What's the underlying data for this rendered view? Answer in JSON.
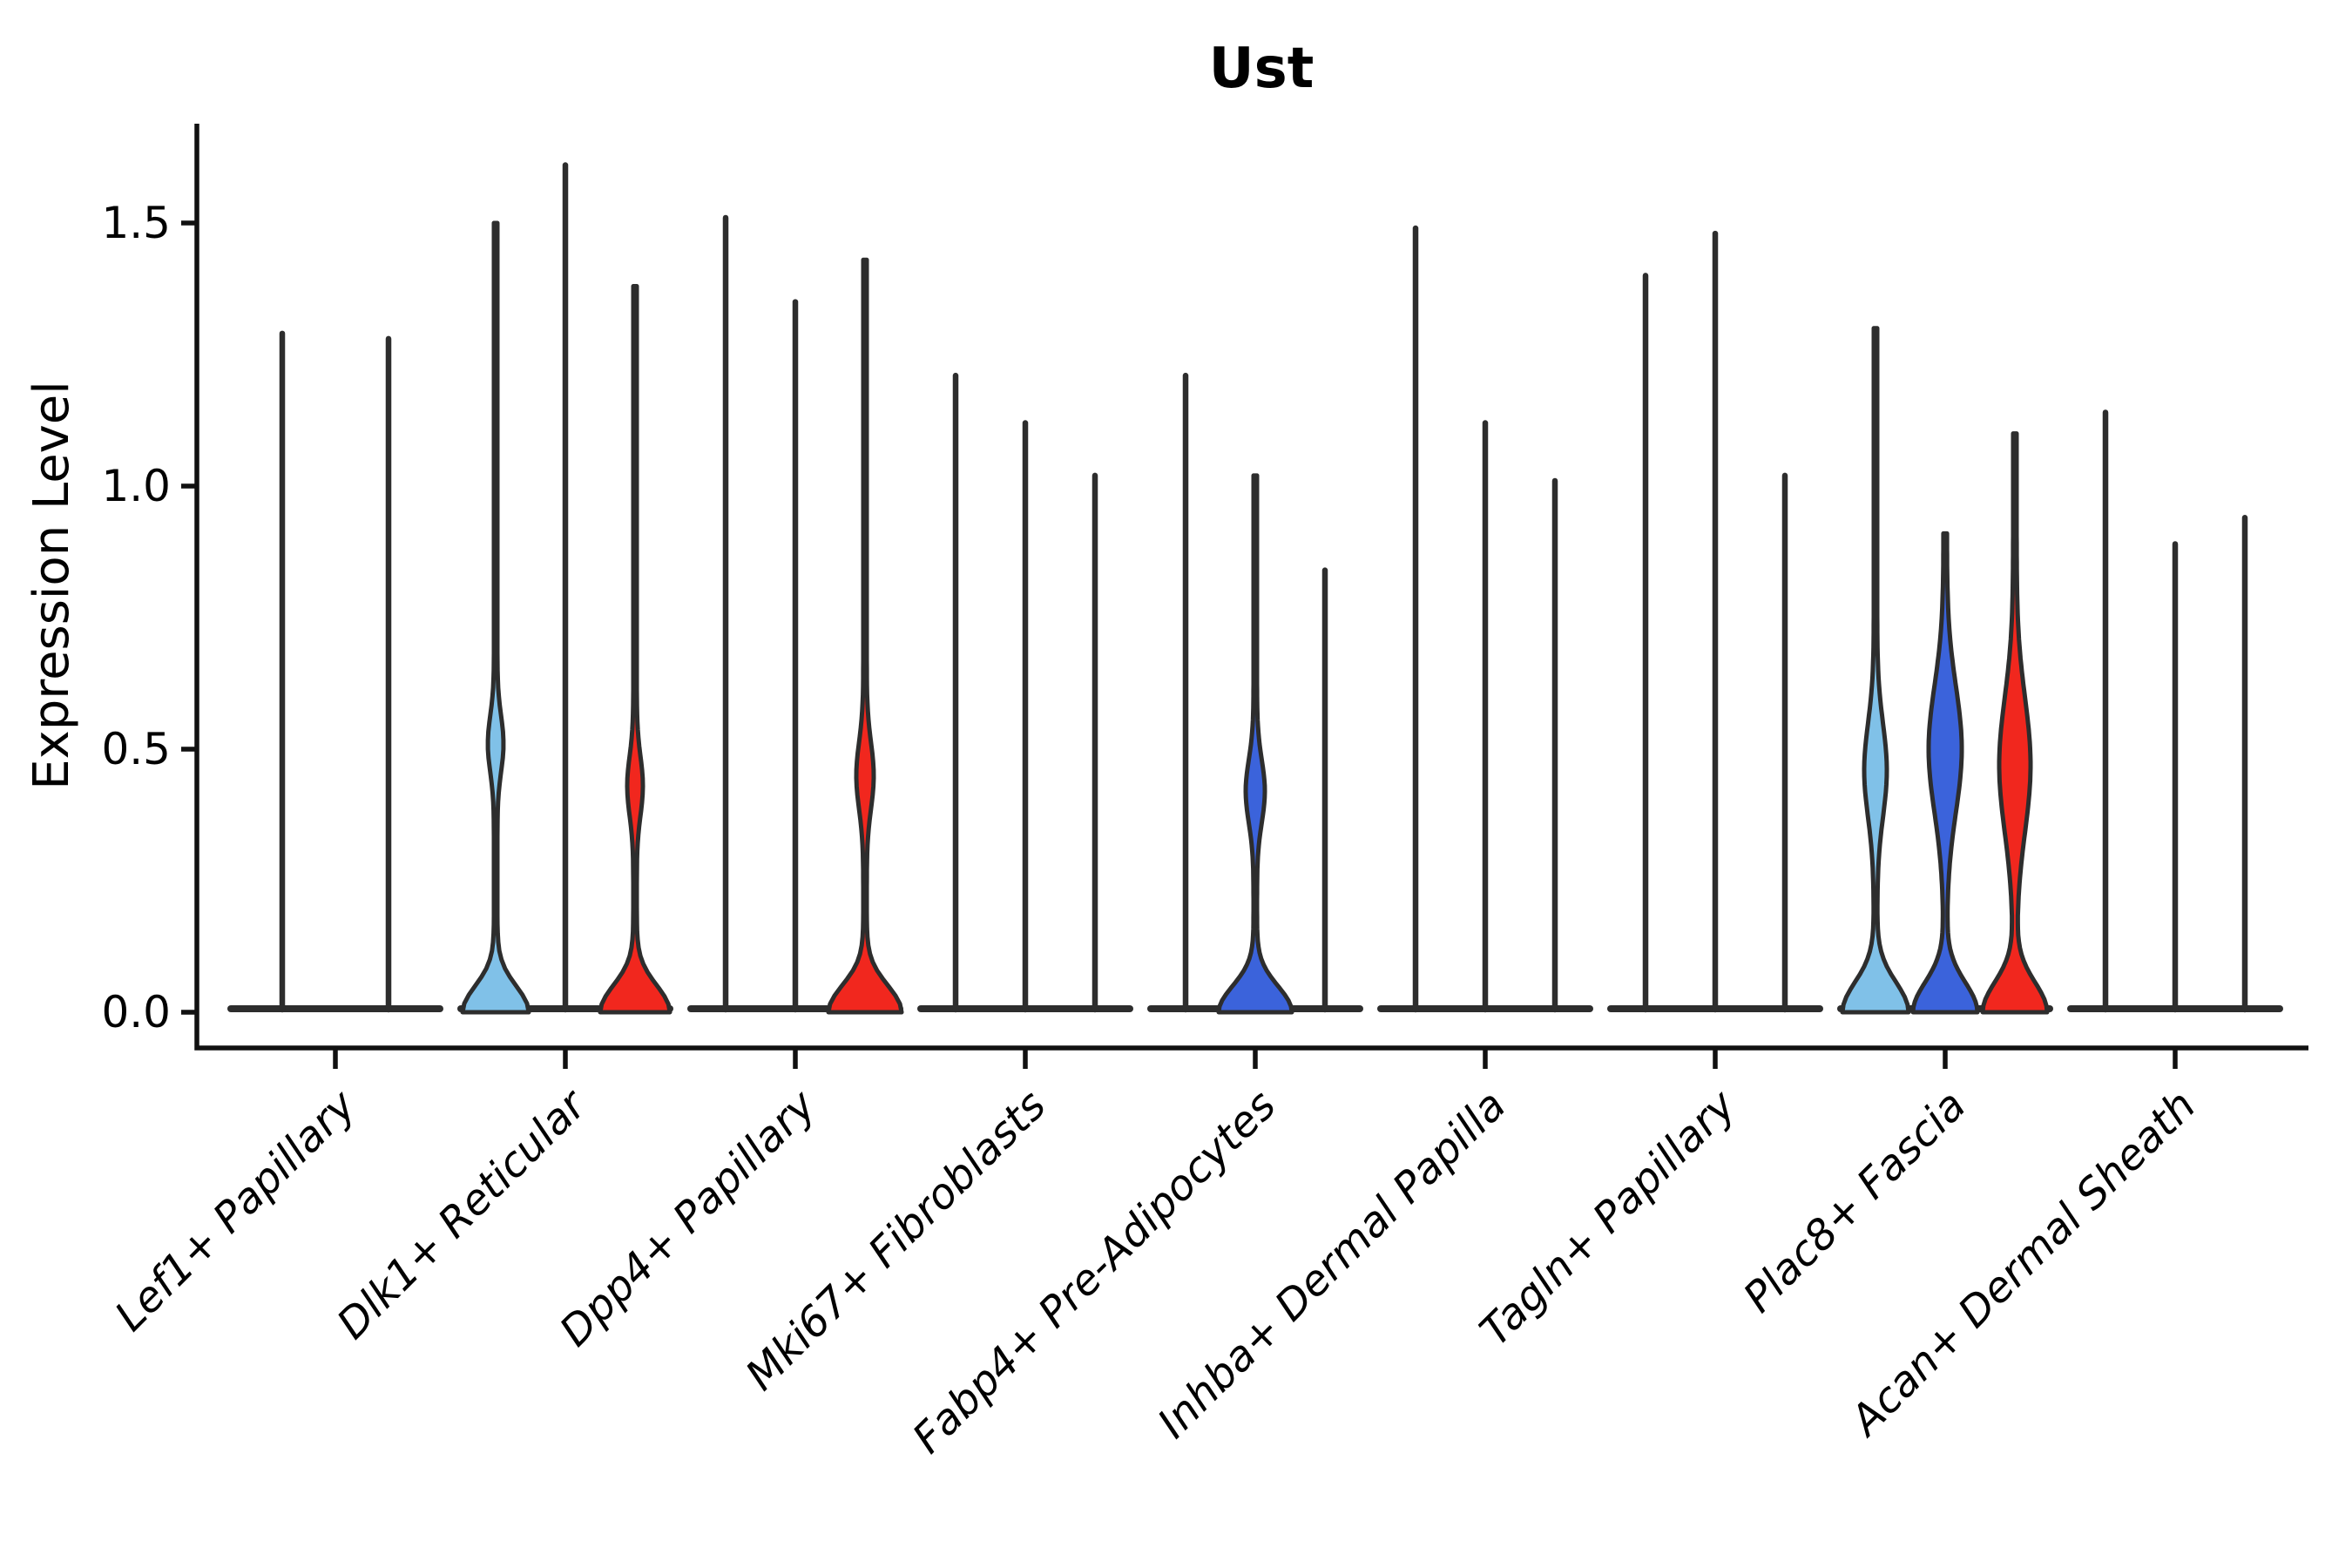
{
  "chart_data": {
    "type": "violin",
    "title": "Ust",
    "xlabel": "",
    "ylabel": "Expression Level",
    "yticks": [
      "0.0",
      "0.5",
      "1.0",
      "1.5"
    ],
    "ytick_values": [
      0.0,
      0.5,
      1.0,
      1.5
    ],
    "ylim": [
      0,
      1.69
    ],
    "grid": false,
    "legend": "none",
    "categories": [
      "Lef1+ Papillary",
      "Dlk1+ Reticular",
      "Dpp4+ Papillary",
      "Mki67+ Fibroblasts",
      "Fabp4+ Pre-Adipocytes",
      "Inhba+ Dermal Papilla",
      "Tagln+ Papillary",
      "Plac8+ Fascia",
      "Acan+ Dermal Sheath"
    ],
    "palette": {
      "light_blue": "#80C1E8",
      "dark_blue": "#3B63DB",
      "red": "#F1271E",
      "outline": "#2D2D2D",
      "axis": "#111111",
      "text": "#000000"
    },
    "groups": [
      {
        "category": "Lef1+ Papillary",
        "violins": [
          {
            "style": "spike",
            "max": 1.29
          },
          {
            "style": "spike",
            "max": 1.28
          }
        ]
      },
      {
        "category": "Dlk1+ Reticular",
        "violins": [
          {
            "style": "violin",
            "fill": "light_blue",
            "max": 1.5,
            "bulge": {
              "v": 0.51,
              "w": 7,
              "s": 0.075
            },
            "base": {
              "w": 36,
              "s": 0.07
            }
          },
          {
            "style": "spike",
            "max": 1.61
          },
          {
            "style": "violin",
            "fill": "red",
            "max": 1.38,
            "bulge": {
              "v": 0.43,
              "w": 7,
              "s": 0.08
            },
            "base": {
              "w": 38,
              "s": 0.072
            }
          }
        ]
      },
      {
        "category": "Dpp4+ Papillary",
        "violins": [
          {
            "style": "spike",
            "max": 1.51
          },
          {
            "style": "spike",
            "max": 1.35
          },
          {
            "style": "violin",
            "fill": "red",
            "max": 1.43,
            "bulge": {
              "v": 0.45,
              "w": 8,
              "s": 0.09
            },
            "base": {
              "w": 40,
              "s": 0.072
            }
          }
        ]
      },
      {
        "category": "Mki67+ Fibroblasts",
        "violins": [
          {
            "style": "spike",
            "max": 1.21
          },
          {
            "style": "spike",
            "max": 1.12
          },
          {
            "style": "spike",
            "max": 1.02
          }
        ]
      },
      {
        "category": "Fabp4+ Pre-Adipocytes",
        "violins": [
          {
            "style": "spike",
            "max": 1.21
          },
          {
            "style": "violin",
            "fill": "dark_blue",
            "max": 1.02,
            "bulge": {
              "v": 0.42,
              "w": 9,
              "s": 0.085
            },
            "base": {
              "w": 40,
              "s": 0.07
            }
          },
          {
            "style": "spike",
            "max": 0.84
          }
        ]
      },
      {
        "category": "Inhba+ Dermal Papilla",
        "violins": [
          {
            "style": "spike",
            "max": 1.49
          },
          {
            "style": "spike",
            "max": 1.12
          },
          {
            "style": "spike",
            "max": 1.01
          }
        ]
      },
      {
        "category": "Tagln+ Papillary",
        "violins": [
          {
            "style": "spike",
            "max": 1.4
          },
          {
            "style": "spike",
            "max": 1.48
          },
          {
            "style": "spike",
            "max": 1.02
          }
        ]
      },
      {
        "category": "Plac8+ Fascia",
        "violins": [
          {
            "style": "violin",
            "fill": "light_blue",
            "max": 1.3,
            "bulge": {
              "v": 0.46,
              "w": 11,
              "s": 0.125
            },
            "base": {
              "w": 36,
              "s": 0.08
            }
          },
          {
            "style": "violin",
            "fill": "dark_blue",
            "max": 0.91,
            "bulge": {
              "v": 0.5,
              "w": 17,
              "s": 0.17
            },
            "base": {
              "w": 35,
              "s": 0.08
            }
          },
          {
            "style": "violin",
            "fill": "red",
            "max": 1.1,
            "bulge": {
              "v": 0.47,
              "w": 16,
              "s": 0.18
            },
            "base": {
              "w": 35,
              "s": 0.08
            }
          }
        ]
      },
      {
        "category": "Acan+ Dermal Sheath",
        "violins": [
          {
            "style": "spike",
            "max": 1.14
          },
          {
            "style": "spike",
            "max": 0.89
          },
          {
            "style": "spike",
            "max": 0.94
          }
        ]
      }
    ]
  }
}
